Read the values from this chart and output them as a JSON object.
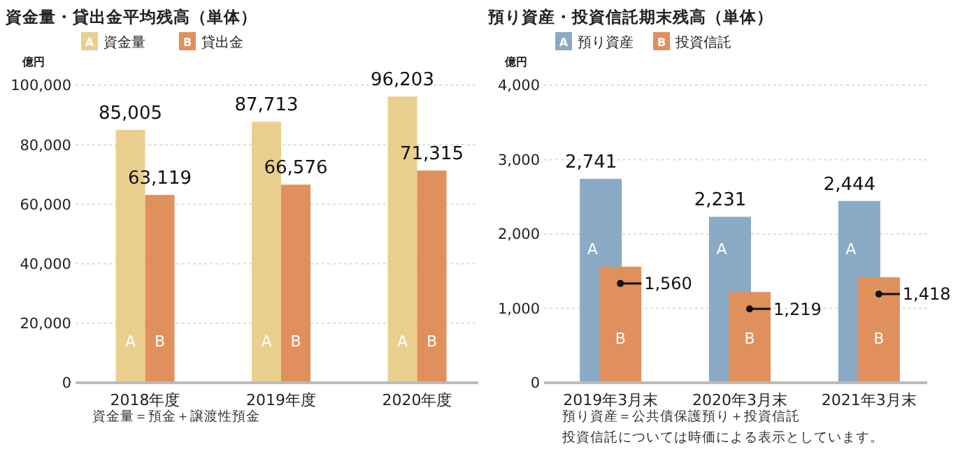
{
  "chart_data": [
    {
      "type": "bar",
      "title": "資金量・貸出金平均残高（単体）",
      "ylabel": "億円",
      "categories": [
        "2018年度",
        "2019年度",
        "2020年度"
      ],
      "series": [
        {
          "name": "資金量",
          "color": "#e9cf8e",
          "values": [
            85005,
            87713,
            96203
          ]
        },
        {
          "name": "貸出金",
          "color": "#e0905c",
          "values": [
            63119,
            66576,
            71315
          ]
        }
      ],
      "ylim": [
        0,
        100000
      ],
      "yticks": [
        {
          "value": 0,
          "label": "0"
        },
        {
          "value": 20000,
          "label": "20,000"
        },
        {
          "value": 40000,
          "label": "40,000"
        },
        {
          "value": 60000,
          "label": "60,000"
        },
        {
          "value": 80000,
          "label": "80,000"
        },
        {
          "value": 100000,
          "label": "100,000"
        }
      ],
      "grid": "y",
      "legend": "top left",
      "value_labels": [
        [
          "85,005",
          "87,713",
          "96,203"
        ],
        [
          "63,119",
          "66,576",
          "71,315"
        ]
      ],
      "annotations": [
        "A",
        "B",
        "資金量＝預金＋譲渡性預金"
      ]
    },
    {
      "type": "bar",
      "title": "預り資産・投資信託期末残高（単体）",
      "ylabel": "億円",
      "categories": [
        "2019年3月末",
        "2020年3月末",
        "2021年3月末"
      ],
      "series": [
        {
          "name": "預り資産",
          "color": "#8aaac6",
          "values": [
            2741,
            2231,
            2444
          ]
        },
        {
          "name": "投資信託",
          "color": "#e0905c",
          "values": [
            1560,
            1219,
            1418
          ]
        }
      ],
      "ylim": [
        0,
        4000
      ],
      "yticks": [
        {
          "value": 0,
          "label": "0"
        },
        {
          "value": 1000,
          "label": "1,000"
        },
        {
          "value": 2000,
          "label": "2,000"
        },
        {
          "value": 3000,
          "label": "3,000"
        },
        {
          "value": 4000,
          "label": "4,000"
        }
      ],
      "grid": "y",
      "legend": "top left",
      "value_labels": [
        [
          "2,741",
          "2,231",
          "2,444"
        ],
        [
          "1,560",
          "1,219",
          "1,418"
        ]
      ],
      "annotations": [
        "A",
        "B",
        "預り資産＝公共債保護預り＋投資信託",
        "投資信託については時価による表示としています。"
      ]
    }
  ]
}
